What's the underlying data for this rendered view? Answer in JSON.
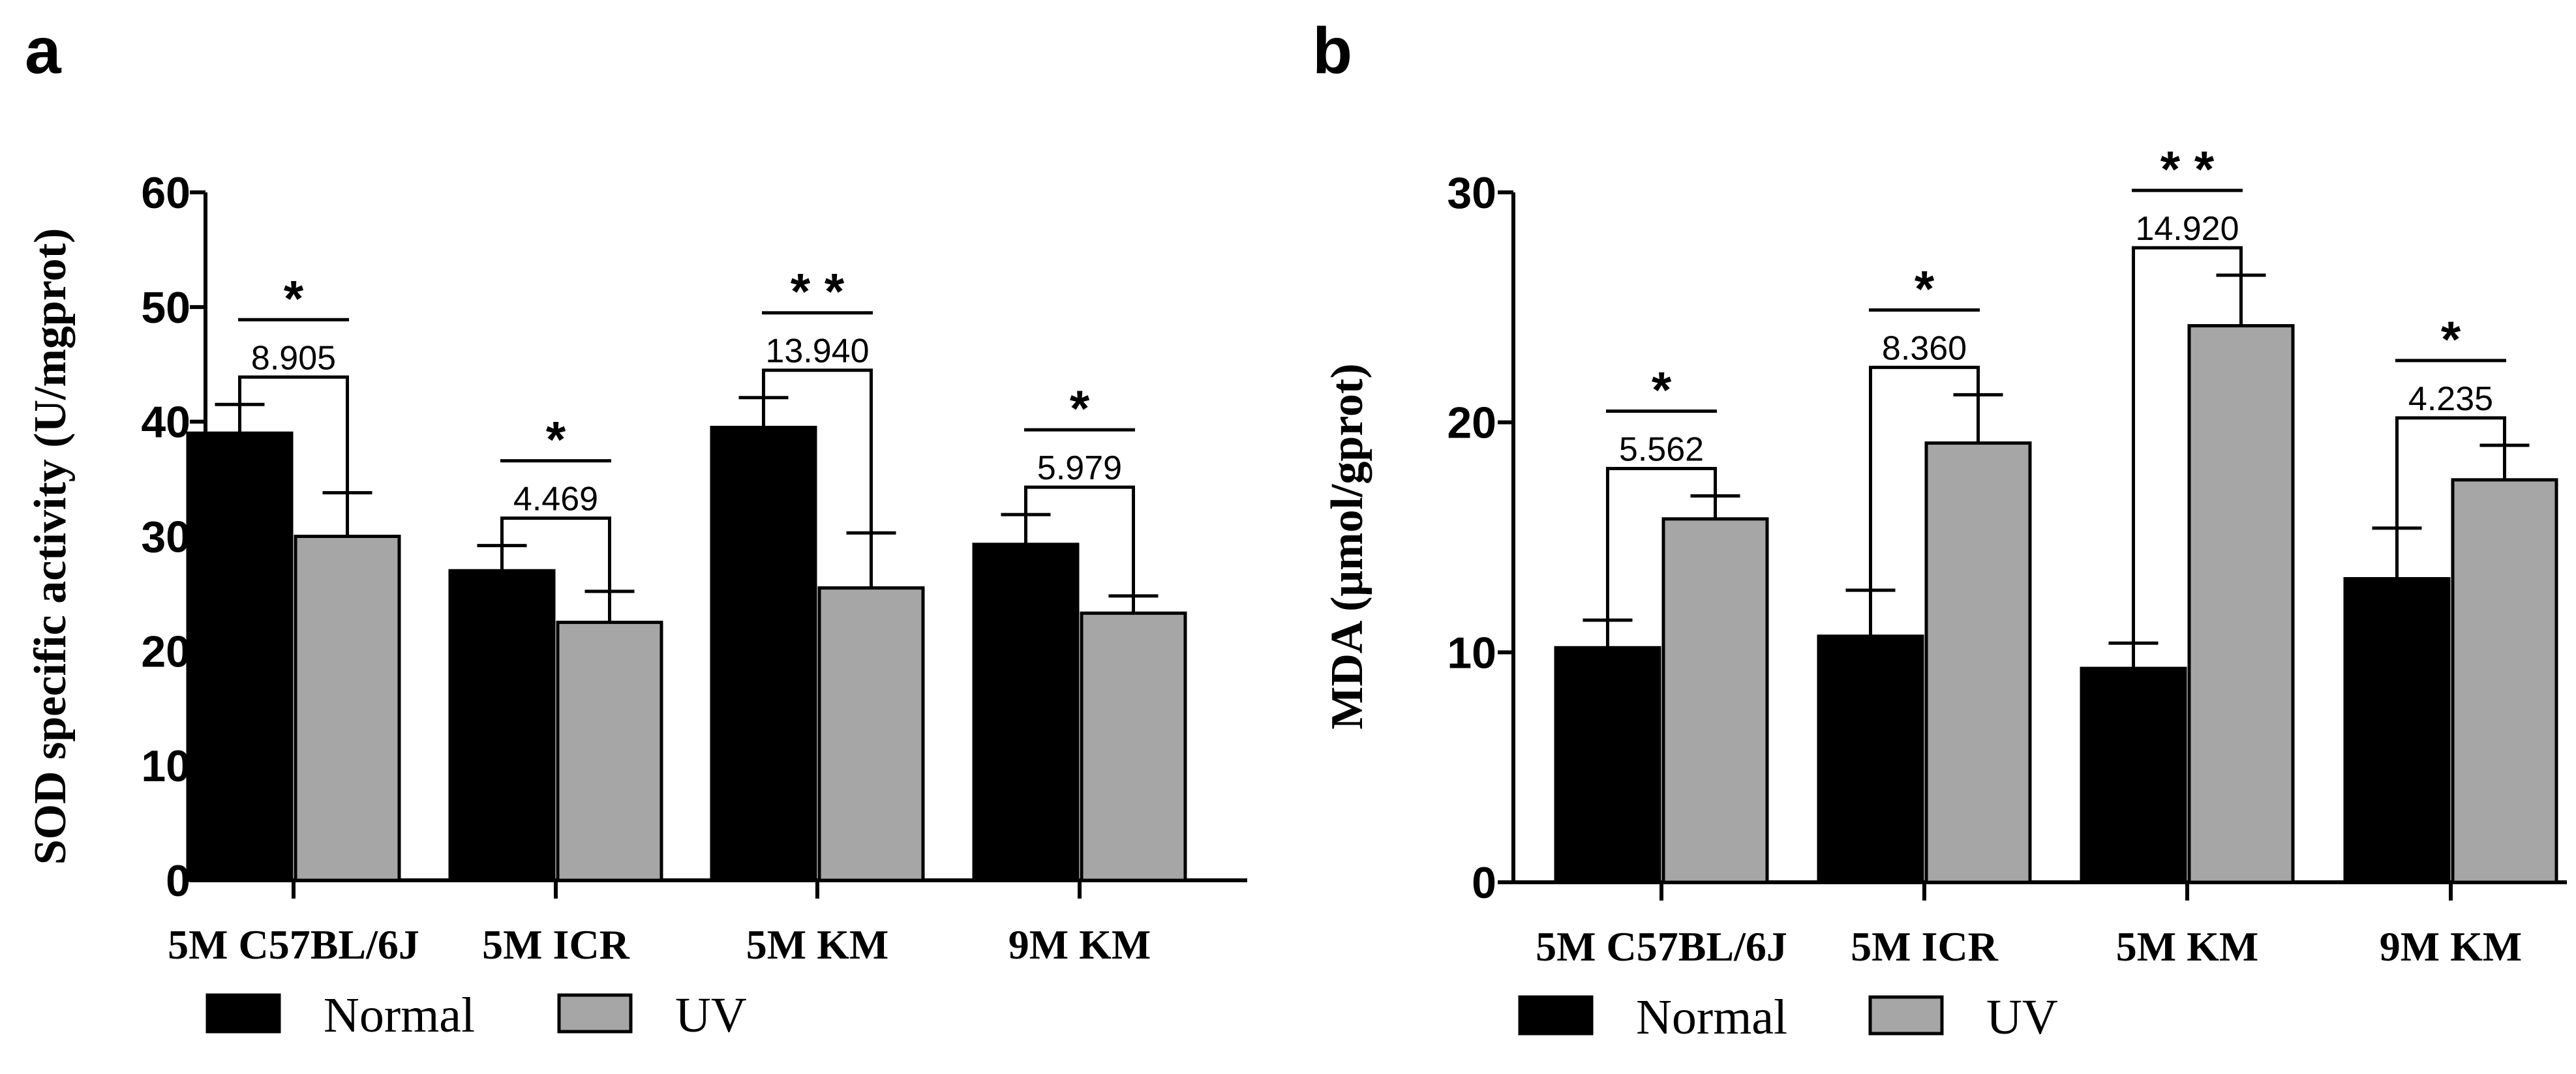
{
  "chart_data": [
    {
      "panel": "a",
      "type": "bar",
      "ylabel": "SOD specific activity (U/mgprot)",
      "xlabel": "",
      "ylim": [
        0,
        60
      ],
      "yticks": [
        "0",
        "10",
        "20",
        "30",
        "40",
        "50",
        "60"
      ],
      "categories": [
        "5M C57BL/6J",
        "5M ICR",
        "5M KM",
        "9M KM"
      ],
      "series": [
        {
          "name": "Normal",
          "color": "#000000",
          "values": [
            39,
            27,
            39.5,
            29.3
          ],
          "errors": [
            2.5,
            2.2,
            2.6,
            2.6
          ]
        },
        {
          "name": "UV",
          "color": "#a6a6a6",
          "values": [
            30,
            22.5,
            25.5,
            23.3
          ],
          "errors": [
            3.8,
            2.7,
            4.8,
            1.5
          ]
        }
      ],
      "annotations": [
        {
          "category": 0,
          "value": "8.905",
          "stars": "*"
        },
        {
          "category": 1,
          "value": "4.469",
          "stars": "*"
        },
        {
          "category": 2,
          "value": "13.940",
          "stars": "* *"
        },
        {
          "category": 3,
          "value": "5.979",
          "stars": "*"
        }
      ]
    },
    {
      "panel": "b",
      "type": "bar",
      "ylabel": "MDA (μmol/gprot)",
      "xlabel": "",
      "ylim": [
        0,
        30
      ],
      "yticks": [
        "0",
        "10",
        "20",
        "30"
      ],
      "categories": [
        "5M C57BL/6J",
        "5M ICR",
        "5M KM",
        "9M KM"
      ],
      "series": [
        {
          "name": "Normal",
          "color": "#000000",
          "values": [
            10.2,
            10.7,
            9.3,
            13.2
          ],
          "errors": [
            1.2,
            2.0,
            1.1,
            2.2
          ]
        },
        {
          "name": "UV",
          "color": "#a6a6a6",
          "values": [
            15.8,
            19.1,
            24.2,
            17.5
          ],
          "errors": [
            1.0,
            2.1,
            2.2,
            1.5
          ]
        }
      ],
      "annotations": [
        {
          "category": 0,
          "value": "5.562",
          "stars": "*"
        },
        {
          "category": 1,
          "value": "8.360",
          "stars": "*"
        },
        {
          "category": 2,
          "value": "14.920",
          "stars": "* *"
        },
        {
          "category": 3,
          "value": "4.235",
          "stars": "*"
        }
      ]
    }
  ],
  "legend": [
    {
      "label": "Normal",
      "color": "#000000"
    },
    {
      "label": "UV",
      "color": "#a6a6a6"
    }
  ]
}
